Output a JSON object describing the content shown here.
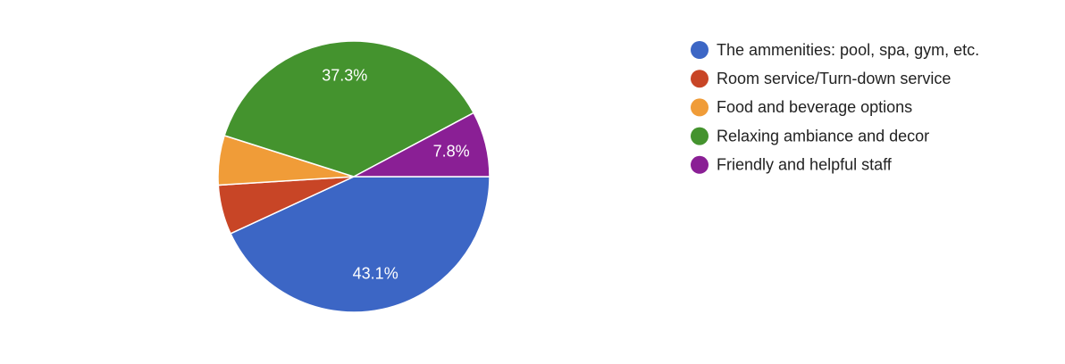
{
  "chart_data": {
    "type": "pie",
    "categories": [
      "The ammenities: pool, spa, gym, etc.",
      "Room service/Turn-down service",
      "Food and beverage options",
      "Relaxing ambiance and decor",
      "Friendly and helpful staff"
    ],
    "values": [
      43.1,
      5.9,
      5.9,
      37.3,
      7.8
    ],
    "value_labels": [
      "43.1%",
      null,
      null,
      "37.3%",
      "7.8%"
    ],
    "colors": [
      "#3c66c5",
      "#c84526",
      "#f09c38",
      "#44932e",
      "#8a1f95"
    ],
    "legend": "right"
  }
}
